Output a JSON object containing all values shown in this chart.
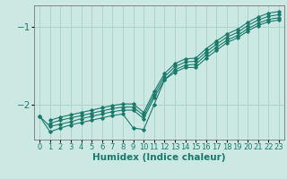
{
  "xlabel": "Humidex (Indice chaleur)",
  "background_color": "#cbe8e3",
  "grid_color": "#a8d5cc",
  "line_color": "#1a7a6a",
  "xlim": [
    -0.5,
    23.5
  ],
  "ylim": [
    -2.45,
    -0.72
  ],
  "yticks": [
    -2,
    -1
  ],
  "xticks": [
    0,
    1,
    2,
    3,
    4,
    5,
    6,
    7,
    8,
    9,
    10,
    11,
    12,
    13,
    14,
    15,
    16,
    17,
    18,
    19,
    20,
    21,
    22,
    23
  ],
  "series": [
    [
      null,
      -2.2,
      -2.16,
      -2.13,
      -2.1,
      -2.07,
      -2.04,
      -2.01,
      -1.99,
      -1.99,
      -2.1,
      -1.83,
      -1.6,
      -1.47,
      -1.41,
      -1.4,
      -1.28,
      -1.18,
      -1.09,
      -1.03,
      -0.94,
      -0.87,
      -0.82,
      -0.8
    ],
    [
      null,
      -2.24,
      -2.2,
      -2.17,
      -2.14,
      -2.11,
      -2.08,
      -2.05,
      -2.03,
      -2.03,
      -2.14,
      -1.87,
      -1.64,
      -1.51,
      -1.45,
      -1.44,
      -1.32,
      -1.22,
      -1.13,
      -1.07,
      -0.98,
      -0.91,
      -0.86,
      -0.84
    ],
    [
      -2.15,
      -2.28,
      -2.25,
      -2.22,
      -2.18,
      -2.15,
      -2.12,
      -2.09,
      -2.07,
      -2.07,
      -2.18,
      -1.91,
      -1.68,
      -1.55,
      -1.49,
      -1.48,
      -1.36,
      -1.26,
      -1.17,
      -1.11,
      -1.02,
      -0.95,
      -0.9,
      -0.88
    ],
    [
      -2.15,
      -2.35,
      -2.3,
      -2.26,
      -2.23,
      -2.2,
      -2.17,
      -2.14,
      -2.12,
      -2.3,
      -2.32,
      -2.0,
      -1.68,
      -1.58,
      -1.52,
      -1.52,
      -1.4,
      -1.3,
      -1.2,
      -1.14,
      -1.05,
      -0.98,
      -0.93,
      -0.91
    ]
  ],
  "xlabel_fontsize": 7.5,
  "tick_fontsize": 6.0,
  "ytick_fontsize": 7.5
}
